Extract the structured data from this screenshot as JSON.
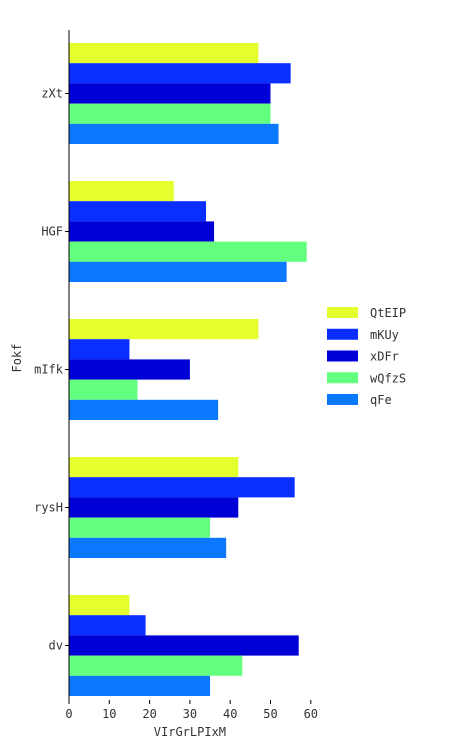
{
  "chart_data": {
    "type": "bar",
    "orientation": "horizontal",
    "title": "",
    "xlabel": "VIrGrLPIxM",
    "ylabel": "Fokf",
    "categories": [
      "zXt",
      "HGF",
      "mIfk",
      "rysH",
      "dv"
    ],
    "xlim": [
      0,
      60
    ],
    "xticks": [
      0,
      10,
      20,
      30,
      40,
      50,
      60
    ],
    "grid": false,
    "legend_position": "right",
    "series": [
      {
        "name": "QtEIP",
        "color": "#e5ff2e",
        "values": [
          47,
          26,
          47,
          42,
          15
        ]
      },
      {
        "name": "mKUy",
        "color": "#0a2eff",
        "values": [
          55,
          34,
          15,
          56,
          19
        ]
      },
      {
        "name": "xDFr",
        "color": "#0000d6",
        "values": [
          50,
          36,
          30,
          42,
          57
        ]
      },
      {
        "name": "wQfzS",
        "color": "#63ff7e",
        "values": [
          50,
          59,
          17,
          35,
          43
        ]
      },
      {
        "name": "qFe",
        "color": "#0a78ff",
        "values": [
          52,
          54,
          37,
          39,
          35
        ]
      }
    ]
  }
}
